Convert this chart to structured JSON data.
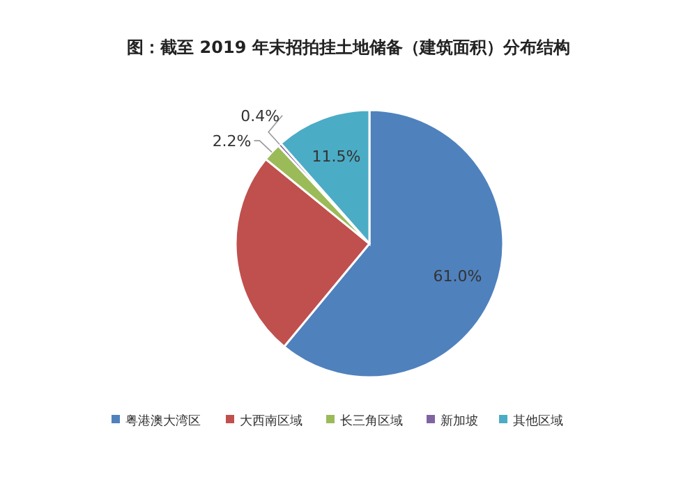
{
  "chart_data": {
    "type": "pie",
    "title": "图：截至 2019 年末招拍挂土地储备（建筑面积）分布结构",
    "categories": [
      "粤港澳大湾区",
      "大西南区域",
      "长三角区域",
      "新加坡",
      "其他区域"
    ],
    "values": [
      61.0,
      24.9,
      2.2,
      0.4,
      11.5
    ],
    "value_labels": [
      "61.0%",
      null,
      "2.2%",
      "0.4%",
      "11.5%"
    ],
    "colors": [
      "#4f81bd",
      "#c0504d",
      "#9bbb59",
      "#8064a2",
      "#4bacc6"
    ],
    "legend": "bottom"
  }
}
